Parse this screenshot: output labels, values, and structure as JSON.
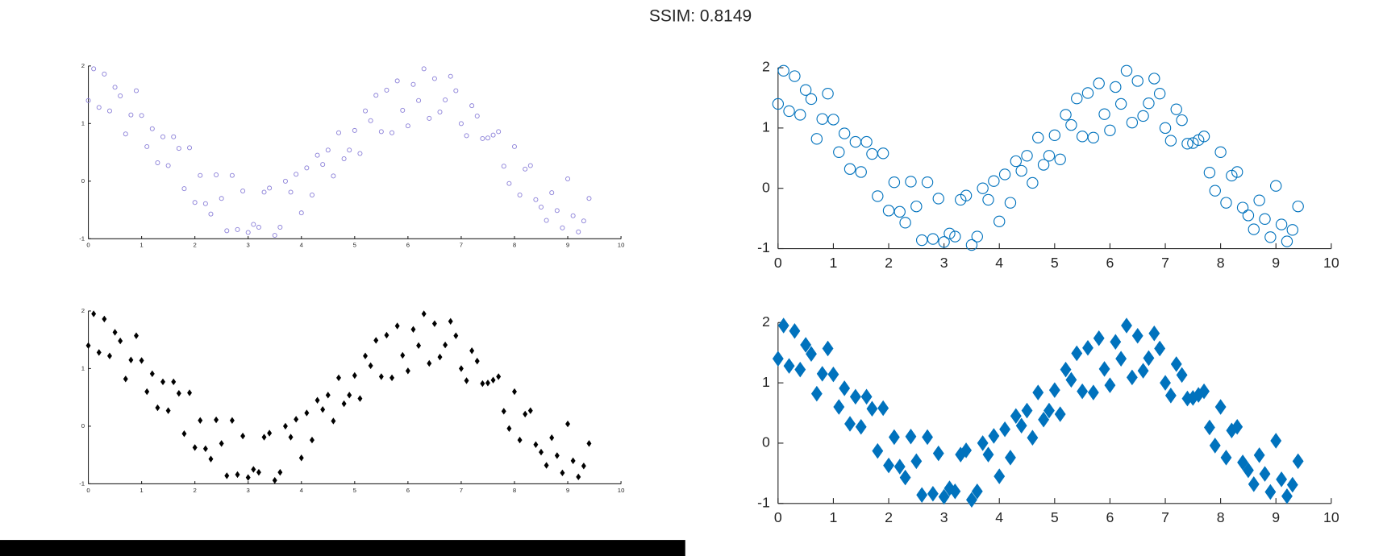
{
  "title": "SSIM: 0.8149",
  "chart_data": [
    {
      "type": "scatter",
      "marker": "circle",
      "filled": false,
      "color": "#8a7fd8",
      "xlim": [
        0,
        10
      ],
      "ylim": [
        -1,
        2
      ],
      "xticks": [
        0,
        1,
        2,
        3,
        4,
        5,
        6,
        7,
        8,
        9,
        10
      ],
      "yticks": [
        -1,
        0,
        1,
        2
      ],
      "x": [
        0.0,
        0.1,
        0.2,
        0.3,
        0.4,
        0.5,
        0.6,
        0.7,
        0.8,
        0.9,
        1.0,
        1.1,
        1.2,
        1.3,
        1.4,
        1.5,
        1.6,
        1.7,
        1.8,
        1.9,
        2.0,
        2.1,
        2.2,
        2.3,
        2.4,
        2.5,
        2.6,
        2.7,
        2.8,
        2.9,
        3.0,
        3.1,
        3.2,
        3.3,
        3.4,
        3.5,
        3.6,
        3.7,
        3.8,
        3.9,
        4.0,
        4.1,
        4.2,
        4.3,
        4.4,
        4.5,
        4.6,
        4.7,
        4.8,
        4.9,
        5.0,
        5.1,
        5.2,
        5.3,
        5.4,
        5.5,
        5.6,
        5.7,
        5.8,
        5.9,
        6.0,
        6.1,
        6.2,
        6.3,
        6.4,
        6.5,
        6.6,
        6.7,
        6.8,
        6.9,
        7.0,
        7.1,
        7.2,
        7.3,
        7.4,
        7.5,
        7.6,
        7.7,
        7.8,
        7.9,
        8.0,
        8.1,
        8.2,
        8.3,
        8.4,
        8.5,
        8.6,
        8.7,
        8.8,
        8.9,
        9.0,
        9.1,
        9.2,
        9.3,
        9.4
      ],
      "y": [
        1.4,
        1.95,
        1.28,
        1.86,
        1.22,
        1.63,
        1.48,
        0.82,
        1.15,
        1.57,
        1.14,
        0.6,
        0.91,
        0.32,
        0.77,
        0.27,
        0.77,
        0.57,
        -0.13,
        0.58,
        -0.37,
        0.1,
        -0.39,
        -0.57,
        0.11,
        -0.3,
        -0.86,
        0.1,
        -0.84,
        -0.17,
        -0.89,
        -0.75,
        -0.8,
        -0.19,
        -0.12,
        -0.94,
        -0.8,
        0.0,
        -0.19,
        0.12,
        -0.55,
        0.23,
        -0.24,
        0.45,
        0.29,
        0.54,
        0.09,
        0.84,
        0.39,
        0.54,
        0.88,
        0.48,
        1.22,
        1.05,
        1.49,
        0.86,
        1.58,
        0.84,
        1.74,
        1.23,
        0.96,
        1.68,
        1.4,
        1.95,
        1.09,
        1.78,
        1.2,
        1.41,
        1.82,
        1.57,
        1.0,
        0.79,
        1.31,
        1.13,
        0.74,
        0.75,
        0.8,
        0.86,
        0.26,
        -0.04,
        0.6,
        -0.24,
        0.21,
        0.27,
        -0.32,
        -0.45,
        -0.68,
        -0.2,
        -0.51,
        -0.81,
        0.04,
        -0.6,
        -0.88,
        -0.69,
        -0.3
      ]
    },
    {
      "type": "scatter",
      "marker": "circle",
      "filled": false,
      "color": "#0072bd",
      "xlim": [
        0,
        10
      ],
      "ylim": [
        -1,
        2
      ],
      "xticks": [
        0,
        1,
        2,
        3,
        4,
        5,
        6,
        7,
        8,
        9,
        10
      ],
      "yticks": [
        -1,
        0,
        1,
        2
      ],
      "x": [
        0.0,
        0.1,
        0.2,
        0.3,
        0.4,
        0.5,
        0.6,
        0.7,
        0.8,
        0.9,
        1.0,
        1.1,
        1.2,
        1.3,
        1.4,
        1.5,
        1.6,
        1.7,
        1.8,
        1.9,
        2.0,
        2.1,
        2.2,
        2.3,
        2.4,
        2.5,
        2.6,
        2.7,
        2.8,
        2.9,
        3.0,
        3.1,
        3.2,
        3.3,
        3.4,
        3.5,
        3.6,
        3.7,
        3.8,
        3.9,
        4.0,
        4.1,
        4.2,
        4.3,
        4.4,
        4.5,
        4.6,
        4.7,
        4.8,
        4.9,
        5.0,
        5.1,
        5.2,
        5.3,
        5.4,
        5.5,
        5.6,
        5.7,
        5.8,
        5.9,
        6.0,
        6.1,
        6.2,
        6.3,
        6.4,
        6.5,
        6.6,
        6.7,
        6.8,
        6.9,
        7.0,
        7.1,
        7.2,
        7.3,
        7.4,
        7.5,
        7.6,
        7.7,
        7.8,
        7.9,
        8.0,
        8.1,
        8.2,
        8.3,
        8.4,
        8.5,
        8.6,
        8.7,
        8.8,
        8.9,
        9.0,
        9.1,
        9.2,
        9.3,
        9.4
      ],
      "y": [
        1.4,
        1.95,
        1.28,
        1.86,
        1.22,
        1.63,
        1.48,
        0.82,
        1.15,
        1.57,
        1.14,
        0.6,
        0.91,
        0.32,
        0.77,
        0.27,
        0.77,
        0.57,
        -0.13,
        0.58,
        -0.37,
        0.1,
        -0.39,
        -0.57,
        0.11,
        -0.3,
        -0.86,
        0.1,
        -0.84,
        -0.17,
        -0.89,
        -0.75,
        -0.8,
        -0.19,
        -0.12,
        -0.94,
        -0.8,
        0.0,
        -0.19,
        0.12,
        -0.55,
        0.23,
        -0.24,
        0.45,
        0.29,
        0.54,
        0.09,
        0.84,
        0.39,
        0.54,
        0.88,
        0.48,
        1.22,
        1.05,
        1.49,
        0.86,
        1.58,
        0.84,
        1.74,
        1.23,
        0.96,
        1.68,
        1.4,
        1.95,
        1.09,
        1.78,
        1.2,
        1.41,
        1.82,
        1.57,
        1.0,
        0.79,
        1.31,
        1.13,
        0.74,
        0.75,
        0.8,
        0.86,
        0.26,
        -0.04,
        0.6,
        -0.24,
        0.21,
        0.27,
        -0.32,
        -0.45,
        -0.68,
        -0.2,
        -0.51,
        -0.81,
        0.04,
        -0.6,
        -0.88,
        -0.69,
        -0.3
      ]
    },
    {
      "type": "scatter",
      "marker": "diamond",
      "filled": true,
      "color": "#000000",
      "xlim": [
        0,
        10
      ],
      "ylim": [
        -1,
        2
      ],
      "xticks": [
        0,
        1,
        2,
        3,
        4,
        5,
        6,
        7,
        8,
        9,
        10
      ],
      "yticks": [
        -1,
        0,
        1,
        2
      ],
      "x": [
        0.0,
        0.1,
        0.2,
        0.3,
        0.4,
        0.5,
        0.6,
        0.7,
        0.8,
        0.9,
        1.0,
        1.1,
        1.2,
        1.3,
        1.4,
        1.5,
        1.6,
        1.7,
        1.8,
        1.9,
        2.0,
        2.1,
        2.2,
        2.3,
        2.4,
        2.5,
        2.6,
        2.7,
        2.8,
        2.9,
        3.0,
        3.1,
        3.2,
        3.3,
        3.4,
        3.5,
        3.6,
        3.7,
        3.8,
        3.9,
        4.0,
        4.1,
        4.2,
        4.3,
        4.4,
        4.5,
        4.6,
        4.7,
        4.8,
        4.9,
        5.0,
        5.1,
        5.2,
        5.3,
        5.4,
        5.5,
        5.6,
        5.7,
        5.8,
        5.9,
        6.0,
        6.1,
        6.2,
        6.3,
        6.4,
        6.5,
        6.6,
        6.7,
        6.8,
        6.9,
        7.0,
        7.1,
        7.2,
        7.3,
        7.4,
        7.5,
        7.6,
        7.7,
        7.8,
        7.9,
        8.0,
        8.1,
        8.2,
        8.3,
        8.4,
        8.5,
        8.6,
        8.7,
        8.8,
        8.9,
        9.0,
        9.1,
        9.2,
        9.3,
        9.4
      ],
      "y": [
        1.4,
        1.95,
        1.28,
        1.86,
        1.22,
        1.63,
        1.48,
        0.82,
        1.15,
        1.57,
        1.14,
        0.6,
        0.91,
        0.32,
        0.77,
        0.27,
        0.77,
        0.57,
        -0.13,
        0.58,
        -0.37,
        0.1,
        -0.39,
        -0.57,
        0.11,
        -0.3,
        -0.86,
        0.1,
        -0.84,
        -0.17,
        -0.89,
        -0.75,
        -0.8,
        -0.19,
        -0.12,
        -0.94,
        -0.8,
        0.0,
        -0.19,
        0.12,
        -0.55,
        0.23,
        -0.24,
        0.45,
        0.29,
        0.54,
        0.09,
        0.84,
        0.39,
        0.54,
        0.88,
        0.48,
        1.22,
        1.05,
        1.49,
        0.86,
        1.58,
        0.84,
        1.74,
        1.23,
        0.96,
        1.68,
        1.4,
        1.95,
        1.09,
        1.78,
        1.2,
        1.41,
        1.82,
        1.57,
        1.0,
        0.79,
        1.31,
        1.13,
        0.74,
        0.75,
        0.8,
        0.86,
        0.26,
        -0.04,
        0.6,
        -0.24,
        0.21,
        0.27,
        -0.32,
        -0.45,
        -0.68,
        -0.2,
        -0.51,
        -0.81,
        0.04,
        -0.6,
        -0.88,
        -0.69,
        -0.3
      ]
    },
    {
      "type": "scatter",
      "marker": "diamond",
      "filled": true,
      "color": "#0072bd",
      "xlim": [
        0,
        10
      ],
      "ylim": [
        -1,
        2
      ],
      "xticks": [
        0,
        1,
        2,
        3,
        4,
        5,
        6,
        7,
        8,
        9,
        10
      ],
      "yticks": [
        -1,
        0,
        1,
        2
      ],
      "x": [
        0.0,
        0.1,
        0.2,
        0.3,
        0.4,
        0.5,
        0.6,
        0.7,
        0.8,
        0.9,
        1.0,
        1.1,
        1.2,
        1.3,
        1.4,
        1.5,
        1.6,
        1.7,
        1.8,
        1.9,
        2.0,
        2.1,
        2.2,
        2.3,
        2.4,
        2.5,
        2.6,
        2.7,
        2.8,
        2.9,
        3.0,
        3.1,
        3.2,
        3.3,
        3.4,
        3.5,
        3.6,
        3.7,
        3.8,
        3.9,
        4.0,
        4.1,
        4.2,
        4.3,
        4.4,
        4.5,
        4.6,
        4.7,
        4.8,
        4.9,
        5.0,
        5.1,
        5.2,
        5.3,
        5.4,
        5.5,
        5.6,
        5.7,
        5.8,
        5.9,
        6.0,
        6.1,
        6.2,
        6.3,
        6.4,
        6.5,
        6.6,
        6.7,
        6.8,
        6.9,
        7.0,
        7.1,
        7.2,
        7.3,
        7.4,
        7.5,
        7.6,
        7.7,
        7.8,
        7.9,
        8.0,
        8.1,
        8.2,
        8.3,
        8.4,
        8.5,
        8.6,
        8.7,
        8.8,
        8.9,
        9.0,
        9.1,
        9.2,
        9.3,
        9.4
      ],
      "y": [
        1.4,
        1.95,
        1.28,
        1.86,
        1.22,
        1.63,
        1.48,
        0.82,
        1.15,
        1.57,
        1.14,
        0.6,
        0.91,
        0.32,
        0.77,
        0.27,
        0.77,
        0.57,
        -0.13,
        0.58,
        -0.37,
        0.1,
        -0.39,
        -0.57,
        0.11,
        -0.3,
        -0.86,
        0.1,
        -0.84,
        -0.17,
        -0.89,
        -0.75,
        -0.8,
        -0.19,
        -0.12,
        -0.94,
        -0.8,
        0.0,
        -0.19,
        0.12,
        -0.55,
        0.23,
        -0.24,
        0.45,
        0.29,
        0.54,
        0.09,
        0.84,
        0.39,
        0.54,
        0.88,
        0.48,
        1.22,
        1.05,
        1.49,
        0.86,
        1.58,
        0.84,
        1.74,
        1.23,
        0.96,
        1.68,
        1.4,
        1.95,
        1.09,
        1.78,
        1.2,
        1.41,
        1.82,
        1.57,
        1.0,
        0.79,
        1.31,
        1.13,
        0.74,
        0.75,
        0.8,
        0.86,
        0.26,
        -0.04,
        0.6,
        -0.24,
        0.21,
        0.27,
        -0.32,
        -0.45,
        -0.68,
        -0.2,
        -0.51,
        -0.81,
        0.04,
        -0.6,
        -0.88,
        -0.69,
        -0.3
      ]
    }
  ]
}
